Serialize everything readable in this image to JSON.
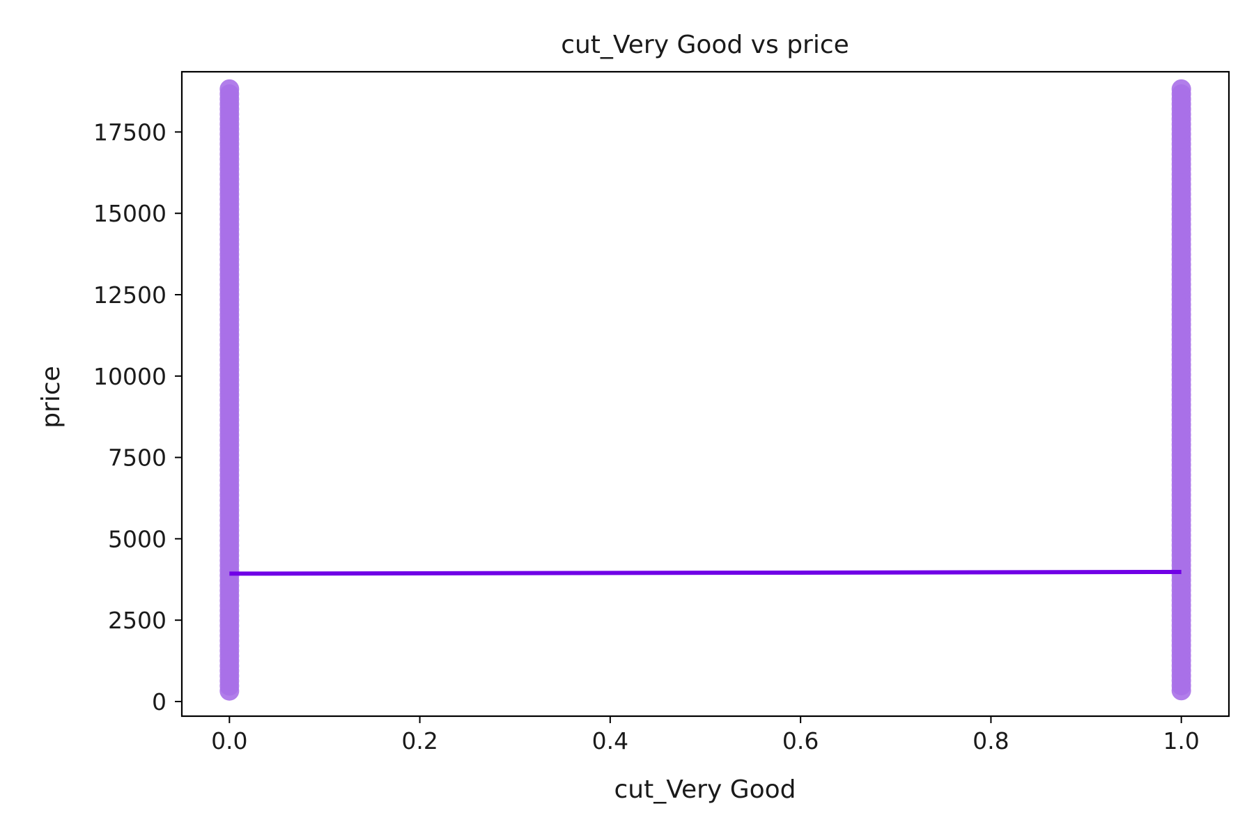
{
  "chart_data": {
    "type": "scatter",
    "title": "cut_Very Good vs price",
    "xlabel": "cut_Very Good",
    "ylabel": "price",
    "xlim": [
      -0.05,
      1.05
    ],
    "ylim": [
      -450,
      19350
    ],
    "xticks": [
      0.0,
      0.2,
      0.4,
      0.6,
      0.8,
      1.0
    ],
    "xtick_labels": [
      "0.0",
      "0.2",
      "0.4",
      "0.6",
      "0.8",
      "1.0"
    ],
    "yticks": [
      0,
      2500,
      5000,
      7500,
      10000,
      12500,
      15000,
      17500
    ],
    "ytick_labels": [
      "0",
      "2500",
      "5000",
      "7500",
      "10000",
      "12500",
      "15000",
      "17500"
    ],
    "grid": false,
    "series": [
      {
        "kind": "scatter",
        "color": "#a970e8",
        "point_groups": [
          {
            "x": 0.0,
            "y_min": 326,
            "y_max": 18818
          },
          {
            "x": 1.0,
            "y_min": 336,
            "y_max": 18818
          }
        ]
      },
      {
        "kind": "regression-line",
        "color": "#7000e6",
        "x": [
          0.0,
          1.0
        ],
        "y": [
          3929,
          3982
        ]
      }
    ]
  }
}
